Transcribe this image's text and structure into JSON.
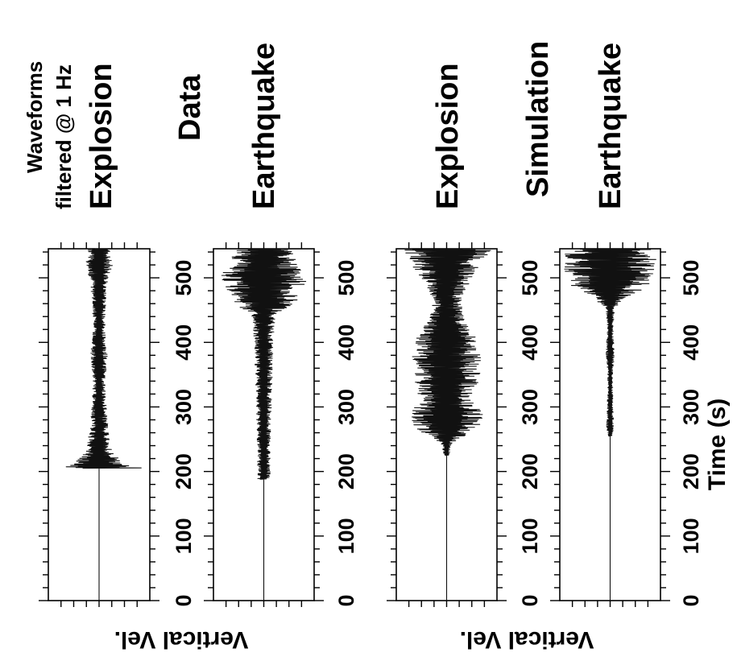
{
  "annotation": {
    "line1": "Waveforms",
    "line2": "filtered @ 1 Hz"
  },
  "groups": {
    "data_label": "Data",
    "simulation_label": "Simulation"
  },
  "axis": {
    "xlabel": "Time (s)",
    "ylabel": "Vertical Vel."
  },
  "chart_data": {
    "type": "line",
    "xlim": [
      0,
      545
    ],
    "x_ticks": [
      "0",
      "100",
      "200",
      "300",
      "400",
      "500"
    ],
    "panels": [
      {
        "group": "Data",
        "label": "Explosion",
        "onset_s": 205,
        "envelope": [
          [
            205,
            0.95
          ],
          [
            212,
            0.55
          ],
          [
            230,
            0.28
          ],
          [
            260,
            0.2
          ],
          [
            290,
            0.16
          ],
          [
            340,
            0.12
          ],
          [
            380,
            0.18
          ],
          [
            420,
            0.12
          ],
          [
            460,
            0.14
          ],
          [
            500,
            0.2
          ],
          [
            520,
            0.28
          ],
          [
            545,
            0.22
          ]
        ]
      },
      {
        "group": "Data",
        "label": "Earthquake",
        "onset_s": 188,
        "envelope": [
          [
            188,
            0.14
          ],
          [
            210,
            0.13
          ],
          [
            250,
            0.14
          ],
          [
            300,
            0.16
          ],
          [
            350,
            0.18
          ],
          [
            400,
            0.2
          ],
          [
            440,
            0.24
          ],
          [
            465,
            0.7
          ],
          [
            480,
            0.8
          ],
          [
            500,
            0.92
          ],
          [
            520,
            0.75
          ],
          [
            545,
            0.6
          ]
        ]
      },
      {
        "group": "Simulation",
        "label": "Explosion",
        "onset_s": 225,
        "envelope": [
          [
            225,
            0.05
          ],
          [
            245,
            0.12
          ],
          [
            265,
            0.65
          ],
          [
            285,
            0.78
          ],
          [
            310,
            0.6
          ],
          [
            350,
            0.7
          ],
          [
            380,
            0.72
          ],
          [
            410,
            0.62
          ],
          [
            440,
            0.35
          ],
          [
            470,
            0.3
          ],
          [
            500,
            0.55
          ],
          [
            530,
            0.85
          ],
          [
            545,
            0.95
          ]
        ]
      },
      {
        "group": "Simulation",
        "label": "Earthquake",
        "onset_s": 255,
        "envelope": [
          [
            255,
            0.04
          ],
          [
            270,
            0.08
          ],
          [
            300,
            0.06
          ],
          [
            350,
            0.05
          ],
          [
            380,
            0.09
          ],
          [
            420,
            0.06
          ],
          [
            455,
            0.1
          ],
          [
            470,
            0.4
          ],
          [
            490,
            0.85
          ],
          [
            510,
            0.95
          ],
          [
            530,
            0.98
          ],
          [
            545,
            0.9
          ]
        ]
      }
    ]
  }
}
